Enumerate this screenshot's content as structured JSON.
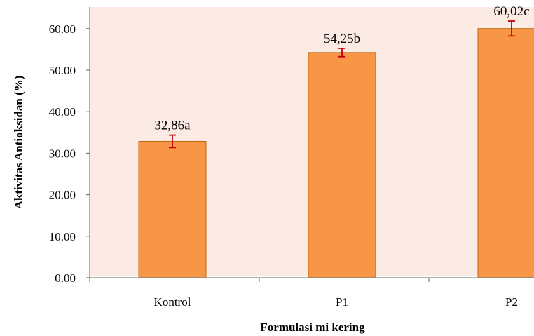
{
  "chart_data": {
    "type": "bar",
    "categories": [
      "Kontrol",
      "P1",
      "P2"
    ],
    "values": [
      32.86,
      54.25,
      60.02
    ],
    "errors": [
      1.5,
      1.0,
      1.8
    ],
    "data_labels": [
      "32,86a",
      "54,25b",
      "60,02c"
    ],
    "title": "",
    "xlabel": "Formulasi mi kering",
    "ylabel": "Aktivitas Antioksidan (%)",
    "ylim": [
      0,
      60
    ],
    "yticks": [
      "0.00",
      "10.00",
      "20.00",
      "30.00",
      "40.00",
      "50.00",
      "60.00"
    ],
    "grid": false,
    "legend": "none",
    "colors": {
      "plot_background": "#FCEAE4",
      "bar_fill": "#F79646",
      "bar_edge": "#C0650F",
      "error_bar": "#C00000",
      "axis": "#808080"
    }
  }
}
